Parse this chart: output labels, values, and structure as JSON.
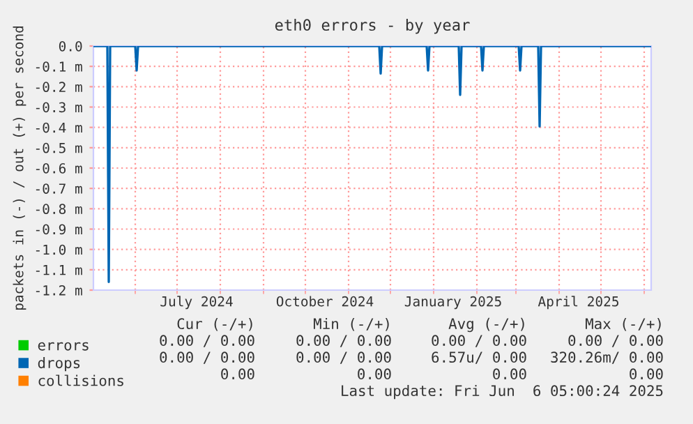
{
  "chart_data": {
    "type": "line",
    "title": "eth0 errors - by year",
    "ylabel": "packets in (-) / out (+) per second",
    "xlim": [
      "2024-05-02",
      "2025-06-06"
    ],
    "xticks": [
      {
        "value": "2024-06-01",
        "label": null
      },
      {
        "value": "2024-07-01",
        "label": null
      },
      {
        "value": "2024-07-15",
        "label": "July 2024"
      },
      {
        "value": "2024-08-01",
        "label": null
      },
      {
        "value": "2024-09-01",
        "label": null
      },
      {
        "value": "2024-10-01",
        "label": null
      },
      {
        "value": "2024-10-15",
        "label": "October 2024"
      },
      {
        "value": "2024-11-01",
        "label": null
      },
      {
        "value": "2024-12-01",
        "label": null
      },
      {
        "value": "2025-01-01",
        "label": null
      },
      {
        "value": "2025-01-15",
        "label": "January 2025"
      },
      {
        "value": "2025-02-01",
        "label": null
      },
      {
        "value": "2025-03-01",
        "label": null
      },
      {
        "value": "2025-04-01",
        "label": null
      },
      {
        "value": "2025-04-15",
        "label": "April 2025"
      },
      {
        "value": "2025-05-01",
        "label": null
      },
      {
        "value": "2025-06-01",
        "label": null
      }
    ],
    "ylim": [
      -1.2,
      0
    ],
    "yticks": [
      {
        "value": 0,
        "label": "0.0"
      },
      {
        "value": -0.1,
        "label": "-0.1 m"
      },
      {
        "value": -0.2,
        "label": "-0.2 m"
      },
      {
        "value": -0.3,
        "label": "-0.3 m"
      },
      {
        "value": -0.4,
        "label": "-0.4 m"
      },
      {
        "value": -0.5,
        "label": "-0.5 m"
      },
      {
        "value": -0.6,
        "label": "-0.6 m"
      },
      {
        "value": -0.7,
        "label": "-0.7 m"
      },
      {
        "value": -0.8,
        "label": "-0.8 m"
      },
      {
        "value": -0.9,
        "label": "-0.9 m"
      },
      {
        "value": -1.0,
        "label": "-1.0 m"
      },
      {
        "value": -1.1,
        "label": "-1.1 m"
      },
      {
        "value": -1.2,
        "label": "-1.2 m"
      }
    ],
    "grid": true,
    "legend": "bottom left",
    "series": [
      {
        "name": "errors",
        "color": "#00cc00"
      },
      {
        "name": "drops",
        "color": "#0066b3",
        "x": [
          "2024-05-02",
          "2024-05-12",
          "2024-05-13",
          "2024-05-14",
          "2024-06-01",
          "2024-06-02",
          "2024-06-03",
          "2024-11-23",
          "2024-11-24",
          "2024-11-25",
          "2024-12-27",
          "2024-12-28",
          "2024-12-29",
          "2025-01-19",
          "2025-01-20",
          "2025-01-21",
          "2025-02-04",
          "2025-02-05",
          "2025-02-06",
          "2025-03-03",
          "2025-03-04",
          "2025-03-05",
          "2025-03-17",
          "2025-03-18",
          "2025-03-19",
          "2025-06-06"
        ],
        "values": [
          0,
          0,
          -1.16,
          0,
          0,
          -0.12,
          0,
          0,
          -0.135,
          0,
          0,
          -0.12,
          0,
          0,
          -0.24,
          0,
          0,
          -0.12,
          0,
          0,
          -0.12,
          0,
          0,
          -0.395,
          0,
          0
        ]
      },
      {
        "name": "collisions",
        "color": "#ff8000"
      }
    ],
    "annotations": [
      "Cur (-/+)",
      "Min (-/+)",
      "Avg (-/+)",
      "Max (-/+)",
      "0.00 / 0.00",
      "0.00 / 0.00",
      "0.00 / 0.00",
      "0.00 / 0.00",
      "0.00 / 0.00",
      "0.00 / 0.00",
      "6.57u/ 0.00",
      "320.26m/ 0.00",
      "0.00",
      "0.00",
      "0.00",
      "0.00",
      "Last update: Fri Jun  6 05:00:24 2025"
    ]
  }
}
